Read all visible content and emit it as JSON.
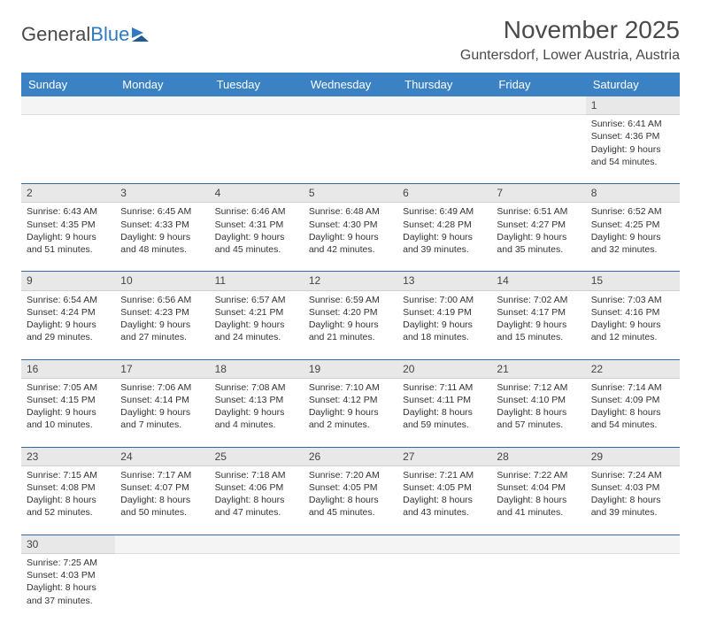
{
  "logo": {
    "part1": "General",
    "part2": "Blue"
  },
  "header": {
    "month_title": "November 2025",
    "location": "Guntersdorf, Lower Austria, Austria"
  },
  "colors": {
    "header_bg": "#3b82c4",
    "header_text": "#ffffff",
    "day_head_bg": "#e8e8e8",
    "row_border": "#2f6aa8",
    "logo_accent": "#2f7ac0"
  },
  "weekdays": [
    "Sunday",
    "Monday",
    "Tuesday",
    "Wednesday",
    "Thursday",
    "Friday",
    "Saturday"
  ],
  "weeks": [
    [
      null,
      null,
      null,
      null,
      null,
      null,
      {
        "day": "1",
        "sunrise": "Sunrise: 6:41 AM",
        "sunset": "Sunset: 4:36 PM",
        "daylight1": "Daylight: 9 hours",
        "daylight2": "and 54 minutes."
      }
    ],
    [
      {
        "day": "2",
        "sunrise": "Sunrise: 6:43 AM",
        "sunset": "Sunset: 4:35 PM",
        "daylight1": "Daylight: 9 hours",
        "daylight2": "and 51 minutes."
      },
      {
        "day": "3",
        "sunrise": "Sunrise: 6:45 AM",
        "sunset": "Sunset: 4:33 PM",
        "daylight1": "Daylight: 9 hours",
        "daylight2": "and 48 minutes."
      },
      {
        "day": "4",
        "sunrise": "Sunrise: 6:46 AM",
        "sunset": "Sunset: 4:31 PM",
        "daylight1": "Daylight: 9 hours",
        "daylight2": "and 45 minutes."
      },
      {
        "day": "5",
        "sunrise": "Sunrise: 6:48 AM",
        "sunset": "Sunset: 4:30 PM",
        "daylight1": "Daylight: 9 hours",
        "daylight2": "and 42 minutes."
      },
      {
        "day": "6",
        "sunrise": "Sunrise: 6:49 AM",
        "sunset": "Sunset: 4:28 PM",
        "daylight1": "Daylight: 9 hours",
        "daylight2": "and 39 minutes."
      },
      {
        "day": "7",
        "sunrise": "Sunrise: 6:51 AM",
        "sunset": "Sunset: 4:27 PM",
        "daylight1": "Daylight: 9 hours",
        "daylight2": "and 35 minutes."
      },
      {
        "day": "8",
        "sunrise": "Sunrise: 6:52 AM",
        "sunset": "Sunset: 4:25 PM",
        "daylight1": "Daylight: 9 hours",
        "daylight2": "and 32 minutes."
      }
    ],
    [
      {
        "day": "9",
        "sunrise": "Sunrise: 6:54 AM",
        "sunset": "Sunset: 4:24 PM",
        "daylight1": "Daylight: 9 hours",
        "daylight2": "and 29 minutes."
      },
      {
        "day": "10",
        "sunrise": "Sunrise: 6:56 AM",
        "sunset": "Sunset: 4:23 PM",
        "daylight1": "Daylight: 9 hours",
        "daylight2": "and 27 minutes."
      },
      {
        "day": "11",
        "sunrise": "Sunrise: 6:57 AM",
        "sunset": "Sunset: 4:21 PM",
        "daylight1": "Daylight: 9 hours",
        "daylight2": "and 24 minutes."
      },
      {
        "day": "12",
        "sunrise": "Sunrise: 6:59 AM",
        "sunset": "Sunset: 4:20 PM",
        "daylight1": "Daylight: 9 hours",
        "daylight2": "and 21 minutes."
      },
      {
        "day": "13",
        "sunrise": "Sunrise: 7:00 AM",
        "sunset": "Sunset: 4:19 PM",
        "daylight1": "Daylight: 9 hours",
        "daylight2": "and 18 minutes."
      },
      {
        "day": "14",
        "sunrise": "Sunrise: 7:02 AM",
        "sunset": "Sunset: 4:17 PM",
        "daylight1": "Daylight: 9 hours",
        "daylight2": "and 15 minutes."
      },
      {
        "day": "15",
        "sunrise": "Sunrise: 7:03 AM",
        "sunset": "Sunset: 4:16 PM",
        "daylight1": "Daylight: 9 hours",
        "daylight2": "and 12 minutes."
      }
    ],
    [
      {
        "day": "16",
        "sunrise": "Sunrise: 7:05 AM",
        "sunset": "Sunset: 4:15 PM",
        "daylight1": "Daylight: 9 hours",
        "daylight2": "and 10 minutes."
      },
      {
        "day": "17",
        "sunrise": "Sunrise: 7:06 AM",
        "sunset": "Sunset: 4:14 PM",
        "daylight1": "Daylight: 9 hours",
        "daylight2": "and 7 minutes."
      },
      {
        "day": "18",
        "sunrise": "Sunrise: 7:08 AM",
        "sunset": "Sunset: 4:13 PM",
        "daylight1": "Daylight: 9 hours",
        "daylight2": "and 4 minutes."
      },
      {
        "day": "19",
        "sunrise": "Sunrise: 7:10 AM",
        "sunset": "Sunset: 4:12 PM",
        "daylight1": "Daylight: 9 hours",
        "daylight2": "and 2 minutes."
      },
      {
        "day": "20",
        "sunrise": "Sunrise: 7:11 AM",
        "sunset": "Sunset: 4:11 PM",
        "daylight1": "Daylight: 8 hours",
        "daylight2": "and 59 minutes."
      },
      {
        "day": "21",
        "sunrise": "Sunrise: 7:12 AM",
        "sunset": "Sunset: 4:10 PM",
        "daylight1": "Daylight: 8 hours",
        "daylight2": "and 57 minutes."
      },
      {
        "day": "22",
        "sunrise": "Sunrise: 7:14 AM",
        "sunset": "Sunset: 4:09 PM",
        "daylight1": "Daylight: 8 hours",
        "daylight2": "and 54 minutes."
      }
    ],
    [
      {
        "day": "23",
        "sunrise": "Sunrise: 7:15 AM",
        "sunset": "Sunset: 4:08 PM",
        "daylight1": "Daylight: 8 hours",
        "daylight2": "and 52 minutes."
      },
      {
        "day": "24",
        "sunrise": "Sunrise: 7:17 AM",
        "sunset": "Sunset: 4:07 PM",
        "daylight1": "Daylight: 8 hours",
        "daylight2": "and 50 minutes."
      },
      {
        "day": "25",
        "sunrise": "Sunrise: 7:18 AM",
        "sunset": "Sunset: 4:06 PM",
        "daylight1": "Daylight: 8 hours",
        "daylight2": "and 47 minutes."
      },
      {
        "day": "26",
        "sunrise": "Sunrise: 7:20 AM",
        "sunset": "Sunset: 4:05 PM",
        "daylight1": "Daylight: 8 hours",
        "daylight2": "and 45 minutes."
      },
      {
        "day": "27",
        "sunrise": "Sunrise: 7:21 AM",
        "sunset": "Sunset: 4:05 PM",
        "daylight1": "Daylight: 8 hours",
        "daylight2": "and 43 minutes."
      },
      {
        "day": "28",
        "sunrise": "Sunrise: 7:22 AM",
        "sunset": "Sunset: 4:04 PM",
        "daylight1": "Daylight: 8 hours",
        "daylight2": "and 41 minutes."
      },
      {
        "day": "29",
        "sunrise": "Sunrise: 7:24 AM",
        "sunset": "Sunset: 4:03 PM",
        "daylight1": "Daylight: 8 hours",
        "daylight2": "and 39 minutes."
      }
    ],
    [
      {
        "day": "30",
        "sunrise": "Sunrise: 7:25 AM",
        "sunset": "Sunset: 4:03 PM",
        "daylight1": "Daylight: 8 hours",
        "daylight2": "and 37 minutes."
      },
      null,
      null,
      null,
      null,
      null,
      null
    ]
  ]
}
